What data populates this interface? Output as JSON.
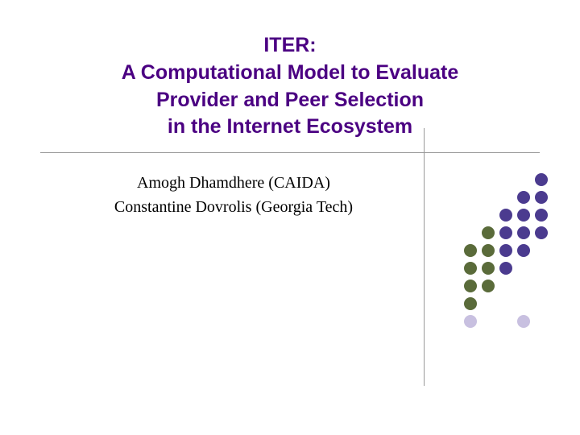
{
  "title": {
    "line1": "ITER:",
    "line2": "A Computational Model to Evaluate",
    "line3": "Provider and Peer Selection",
    "line4": "in the Internet Ecosystem",
    "color": "#4b0082",
    "fontsize": 25
  },
  "authors": {
    "line1": "Amogh Dhamdhere (CAIDA)",
    "line2": "Constantine Dovrolis (Georgia Tech)",
    "color": "#000000",
    "fontsize": 20
  },
  "divider": {
    "color": "#999999"
  },
  "vertical_line": {
    "color": "#999999"
  },
  "dot_grid": {
    "rows": 9,
    "cols": 5,
    "dot_size": 16,
    "gap": 6,
    "colors": [
      [
        "transparent",
        "transparent",
        "transparent",
        "transparent",
        "#4b3b8f"
      ],
      [
        "transparent",
        "transparent",
        "transparent",
        "#4b3b8f",
        "#4b3b8f"
      ],
      [
        "transparent",
        "transparent",
        "#4b3b8f",
        "#4b3b8f",
        "#4b3b8f"
      ],
      [
        "transparent",
        "#5a6b3a",
        "#4b3b8f",
        "#4b3b8f",
        "#4b3b8f"
      ],
      [
        "#5a6b3a",
        "#5a6b3a",
        "#4b3b8f",
        "#4b3b8f",
        "transparent"
      ],
      [
        "#5a6b3a",
        "#5a6b3a",
        "#4b3b8f",
        "transparent",
        "transparent"
      ],
      [
        "#5a6b3a",
        "#5a6b3a",
        "transparent",
        "transparent",
        "transparent"
      ],
      [
        "#5a6b3a",
        "transparent",
        "transparent",
        "transparent",
        "transparent"
      ],
      [
        "#c8c0e0",
        "transparent",
        "transparent",
        "#c8c0e0",
        "transparent"
      ]
    ]
  },
  "background_color": "#ffffff"
}
